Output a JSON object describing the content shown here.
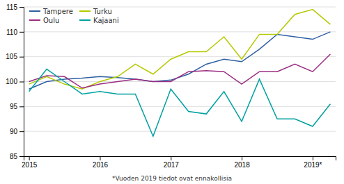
{
  "chart_data": {
    "type": "line",
    "categories": [
      "2015",
      null,
      null,
      null,
      "2016",
      null,
      null,
      null,
      "2017",
      null,
      null,
      null,
      "2018",
      null,
      null,
      null,
      "2019*",
      null
    ],
    "series": [
      {
        "name": "Tampere",
        "color": "#2e5fa3",
        "values": [
          98.5,
          100.0,
          100.5,
          100.7,
          101.0,
          100.8,
          100.5,
          100.0,
          100.3,
          101.5,
          103.5,
          104.5,
          104.0,
          106.5,
          109.5,
          109.0,
          108.5,
          110.0
        ]
      },
      {
        "name": "Turku",
        "color": "#b5c900",
        "values": [
          99.5,
          101.0,
          99.5,
          98.5,
          100.0,
          101.0,
          103.5,
          101.5,
          104.5,
          106.0,
          106.0,
          109.0,
          104.5,
          109.5,
          109.5,
          113.5,
          114.5,
          111.5
        ]
      },
      {
        "name": "Oulu",
        "color": "#9b2c82",
        "values": [
          100.0,
          101.2,
          101.0,
          98.7,
          99.5,
          100.0,
          100.5,
          100.0,
          100.0,
          102.0,
          102.2,
          102.0,
          99.5,
          102.0,
          102.0,
          103.5,
          102.0,
          105.5
        ]
      },
      {
        "name": "Kajaani",
        "color": "#00a0a0",
        "values": [
          98.0,
          102.5,
          100.0,
          97.5,
          98.0,
          97.5,
          97.5,
          89.0,
          98.5,
          94.0,
          93.5,
          98.0,
          92.0,
          100.5,
          92.5,
          92.5,
          91.0,
          95.5
        ]
      }
    ],
    "ylim": [
      85,
      115
    ],
    "yticks": [
      85,
      90,
      95,
      100,
      105,
      110,
      115
    ],
    "grid": true,
    "legend": "upper left",
    "annotations": [
      "*Vuoden 2019 tiedot ovat ennakollisia"
    ]
  }
}
